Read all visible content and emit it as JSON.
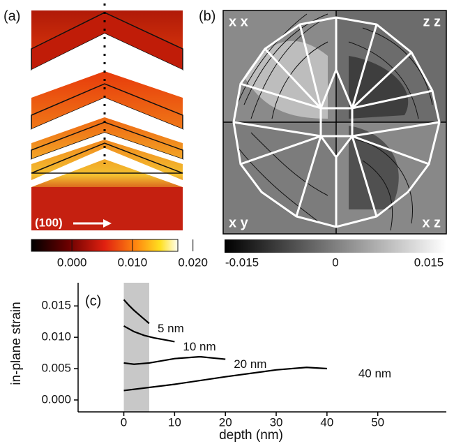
{
  "panel_a": {
    "label": "(a)",
    "direction": "(100)",
    "colorbar": {
      "lim": [
        -0.0067,
        0.0175
      ],
      "ticks": [
        {
          "value": 0,
          "label": "0.000"
        },
        {
          "value": 0.01,
          "label": "0.010"
        },
        {
          "value": 0.02,
          "label": "0.020"
        }
      ]
    }
  },
  "panel_b": {
    "label": "(b)",
    "quadrants": [
      "x x",
      "z z",
      "x y",
      "x z"
    ],
    "colorbar": {
      "lim": [
        -0.0178,
        0.0178
      ],
      "ticks": [
        -0.015,
        0,
        0.015
      ]
    }
  },
  "chart_data": {
    "type": "line",
    "label": "(c)",
    "xlabel": "depth (nm)",
    "ylabel": "in-plane strain",
    "xlim": [
      -9,
      63.5
    ],
    "ylim": [
      -0.0019,
      0.0187
    ],
    "xticks": [
      0,
      10,
      20,
      30,
      40,
      50
    ],
    "yticks": [
      {
        "value": 0,
        "label": "0.000"
      },
      0.005,
      {
        "value": 0.01,
        "label": "0.010"
      },
      0.015
    ],
    "shade": [
      0,
      5
    ],
    "series": [
      {
        "name": "5 nm",
        "color": "#000000",
        "x": [
          0,
          1,
          2,
          3,
          4,
          5
        ],
        "values": [
          0.016,
          0.0151,
          0.0143,
          0.0136,
          0.0129,
          0.0122
        ]
      },
      {
        "name": "10 nm",
        "color": "#000000",
        "x": [
          0,
          2,
          4,
          6,
          8,
          10
        ],
        "values": [
          0.0118,
          0.0109,
          0.0103,
          0.0099,
          0.0096,
          0.0093
        ]
      },
      {
        "name": "20 nm",
        "color": "#000000",
        "x": [
          0,
          2,
          5,
          10,
          15,
          20
        ],
        "values": [
          0.0059,
          0.0057,
          0.0059,
          0.0066,
          0.0069,
          0.0065
        ]
      },
      {
        "name": "40 nm",
        "color": "#000000",
        "x": [
          0,
          10,
          20,
          30,
          36,
          40
        ],
        "values": [
          0.0015,
          0.0025,
          0.0037,
          0.0048,
          0.0052,
          0.005
        ]
      }
    ]
  }
}
